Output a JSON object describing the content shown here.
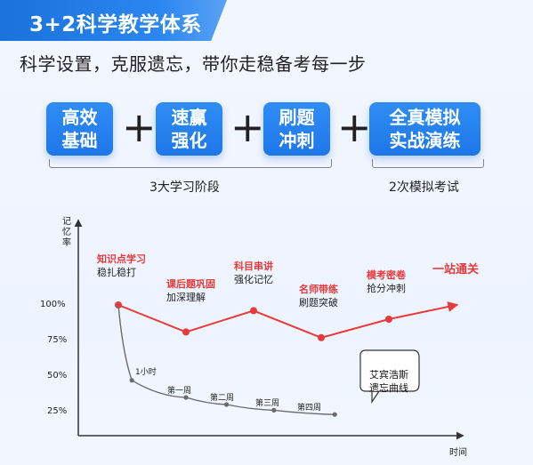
{
  "header": {
    "title": "3+2科学教学体系",
    "subtitle": "科学设置，克服遗忘，带你走稳备考每一步"
  },
  "stages": [
    {
      "label_line1": "高效",
      "label_line2": "基础"
    },
    {
      "label_line1": "速赢",
      "label_line2": "强化"
    },
    {
      "label_line1": "刷题",
      "label_line2": "冲刺"
    },
    {
      "label_line1": "全真模拟",
      "label_line2": "实战演练"
    }
  ],
  "operators": [
    "+",
    "+",
    "+"
  ],
  "brackets": {
    "study_phases": "3大学习阶段",
    "mock_exams": "2次模拟考试"
  },
  "chart_data": {
    "type": "line",
    "ylabel": "记忆率",
    "xlabel": "时间",
    "y_ticks": [
      "100%",
      "75%",
      "50%",
      "25%"
    ],
    "ylim": [
      0,
      120
    ],
    "series": [
      {
        "name": "",
        "color": "#e83a3a",
        "points": [
          {
            "x": 1,
            "y": 100
          },
          {
            "x": 2,
            "y": 81
          },
          {
            "x": 3,
            "y": 96
          },
          {
            "x": 4,
            "y": 77
          },
          {
            "x": 5,
            "y": 90
          },
          {
            "x": 6,
            "y": 100
          }
        ]
      },
      {
        "name": "",
        "color": "#6b6b6b",
        "points": [
          {
            "x": 1,
            "y": 100,
            "label": ""
          },
          {
            "x": 1.2,
            "y": 47,
            "label": "1小时"
          },
          {
            "x": 2,
            "y": 35,
            "label": "第一周"
          },
          {
            "x": 2.6,
            "y": 30,
            "label": "第二周"
          },
          {
            "x": 3.3,
            "y": 26,
            "label": "第三周"
          },
          {
            "x": 4.2,
            "y": 23,
            "label": "第四周"
          }
        ]
      }
    ],
    "annotations": [
      {
        "title": "知识点学习",
        "subtitle": "稳扎稳打"
      },
      {
        "title": "课后题巩固",
        "subtitle": "加深理解"
      },
      {
        "title": "科目串讲",
        "subtitle": "强化记忆"
      },
      {
        "title": "名师带练",
        "subtitle": "刷题突破"
      },
      {
        "title": "模考密卷",
        "subtitle": "抢分冲刺"
      },
      {
        "title": "一站通关",
        "subtitle": ""
      }
    ],
    "bubble": {
      "line1": "艾宾浩斯",
      "line2": "遗忘曲线"
    }
  }
}
